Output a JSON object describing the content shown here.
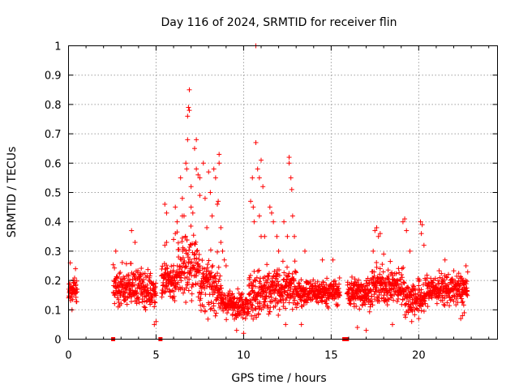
{
  "chart_data": {
    "type": "scatter",
    "title": "Day 116 of 2024, SRMTID for receiver flin",
    "xlabel": "GPS time / hours",
    "ylabel": "SRMTID / TECUs",
    "xlim": [
      0,
      24.5
    ],
    "ylim": [
      0,
      1
    ],
    "grid": true,
    "marker": "+",
    "marker_color": "#ff0000",
    "x_ticks": [
      {
        "value": 0,
        "label": "0"
      },
      {
        "value": 5,
        "label": "5"
      },
      {
        "value": 10,
        "label": "10"
      },
      {
        "value": 15,
        "label": "15"
      },
      {
        "value": 20,
        "label": "20"
      }
    ],
    "y_ticks": [
      {
        "value": 0,
        "label": "0"
      },
      {
        "value": 0.1,
        "label": "0.1"
      },
      {
        "value": 0.2,
        "label": "0.2"
      },
      {
        "value": 0.3,
        "label": "0.3"
      },
      {
        "value": 0.4,
        "label": "0.4"
      },
      {
        "value": 0.5,
        "label": "0.5"
      },
      {
        "value": 0.6,
        "label": "0.6"
      },
      {
        "value": 0.7,
        "label": "0.7"
      },
      {
        "value": 0.8,
        "label": "0.8"
      },
      {
        "value": 0.9,
        "label": "0.9"
      },
      {
        "value": 1,
        "label": "1"
      }
    ],
    "gap_markers_x": [
      2.55,
      5.25,
      15.75,
      15.9
    ],
    "segments": [
      {
        "start": 0.0,
        "end": 0.5,
        "base": 0.17,
        "spread": 0.05
      },
      {
        "start": 2.55,
        "end": 3.3,
        "base": 0.17,
        "spread": 0.08
      },
      {
        "start": 3.3,
        "end": 4.2,
        "base": 0.18,
        "spread": 0.07
      },
      {
        "start": 4.2,
        "end": 5.0,
        "base": 0.17,
        "spread": 0.07
      },
      {
        "start": 5.3,
        "end": 6.2,
        "base": 0.2,
        "spread": 0.08
      },
      {
        "start": 6.2,
        "end": 7.5,
        "base": 0.25,
        "spread": 0.14
      },
      {
        "start": 7.5,
        "end": 8.7,
        "base": 0.18,
        "spread": 0.1
      },
      {
        "start": 8.7,
        "end": 10.3,
        "base": 0.12,
        "spread": 0.05
      },
      {
        "start": 10.3,
        "end": 11.6,
        "base": 0.15,
        "spread": 0.1
      },
      {
        "start": 11.6,
        "end": 13.0,
        "base": 0.17,
        "spread": 0.08
      },
      {
        "start": 13.0,
        "end": 15.5,
        "base": 0.16,
        "spread": 0.05
      },
      {
        "start": 15.9,
        "end": 17.3,
        "base": 0.16,
        "spread": 0.06
      },
      {
        "start": 17.3,
        "end": 19.2,
        "base": 0.18,
        "spread": 0.07
      },
      {
        "start": 19.2,
        "end": 20.4,
        "base": 0.14,
        "spread": 0.07
      },
      {
        "start": 20.4,
        "end": 22.8,
        "base": 0.17,
        "spread": 0.06
      }
    ],
    "notable_points": [
      {
        "x": 0.1,
        "y": 0.26
      },
      {
        "x": 0.4,
        "y": 0.24
      },
      {
        "x": 0.2,
        "y": 0.1
      },
      {
        "x": 2.7,
        "y": 0.3
      },
      {
        "x": 3.6,
        "y": 0.37
      },
      {
        "x": 3.8,
        "y": 0.33
      },
      {
        "x": 4.9,
        "y": 0.05
      },
      {
        "x": 5.0,
        "y": 0.06
      },
      {
        "x": 5.5,
        "y": 0.32
      },
      {
        "x": 5.6,
        "y": 0.33
      },
      {
        "x": 6.0,
        "y": 0.34
      },
      {
        "x": 6.1,
        "y": 0.36
      },
      {
        "x": 5.5,
        "y": 0.46
      },
      {
        "x": 5.6,
        "y": 0.43
      },
      {
        "x": 6.1,
        "y": 0.45
      },
      {
        "x": 6.2,
        "y": 0.4
      },
      {
        "x": 6.4,
        "y": 0.55
      },
      {
        "x": 6.5,
        "y": 0.48
      },
      {
        "x": 6.5,
        "y": 0.42
      },
      {
        "x": 6.6,
        "y": 0.42
      },
      {
        "x": 6.7,
        "y": 0.6
      },
      {
        "x": 6.75,
        "y": 0.58
      },
      {
        "x": 6.8,
        "y": 0.68
      },
      {
        "x": 6.8,
        "y": 0.76
      },
      {
        "x": 6.85,
        "y": 0.79
      },
      {
        "x": 6.9,
        "y": 0.78
      },
      {
        "x": 6.9,
        "y": 0.85
      },
      {
        "x": 7.0,
        "y": 0.52
      },
      {
        "x": 7.0,
        "y": 0.45
      },
      {
        "x": 7.1,
        "y": 0.43
      },
      {
        "x": 7.2,
        "y": 0.65
      },
      {
        "x": 7.3,
        "y": 0.58
      },
      {
        "x": 7.4,
        "y": 0.56
      },
      {
        "x": 7.3,
        "y": 0.68
      },
      {
        "x": 7.5,
        "y": 0.55
      },
      {
        "x": 7.5,
        "y": 0.49
      },
      {
        "x": 7.7,
        "y": 0.6
      },
      {
        "x": 7.8,
        "y": 0.48
      },
      {
        "x": 7.9,
        "y": 0.38
      },
      {
        "x": 8.0,
        "y": 0.57
      },
      {
        "x": 8.1,
        "y": 0.5
      },
      {
        "x": 8.2,
        "y": 0.42
      },
      {
        "x": 8.3,
        "y": 0.58
      },
      {
        "x": 8.4,
        "y": 0.55
      },
      {
        "x": 8.5,
        "y": 0.46
      },
      {
        "x": 8.55,
        "y": 0.47
      },
      {
        "x": 8.6,
        "y": 0.63
      },
      {
        "x": 8.6,
        "y": 0.6
      },
      {
        "x": 8.7,
        "y": 0.38
      },
      {
        "x": 8.7,
        "y": 0.33
      },
      {
        "x": 8.8,
        "y": 0.3
      },
      {
        "x": 8.9,
        "y": 0.27
      },
      {
        "x": 9.0,
        "y": 0.25
      },
      {
        "x": 10.0,
        "y": 0.02
      },
      {
        "x": 9.6,
        "y": 0.03
      },
      {
        "x": 10.4,
        "y": 0.47
      },
      {
        "x": 10.5,
        "y": 0.55
      },
      {
        "x": 10.55,
        "y": 0.45
      },
      {
        "x": 10.6,
        "y": 0.4
      },
      {
        "x": 10.7,
        "y": 0.67
      },
      {
        "x": 10.7,
        "y": 1.0
      },
      {
        "x": 10.8,
        "y": 0.58
      },
      {
        "x": 10.9,
        "y": 0.55
      },
      {
        "x": 10.9,
        "y": 0.42
      },
      {
        "x": 11.0,
        "y": 0.61
      },
      {
        "x": 11.1,
        "y": 0.52
      },
      {
        "x": 11.0,
        "y": 0.35
      },
      {
        "x": 11.2,
        "y": 0.35
      },
      {
        "x": 11.5,
        "y": 0.45
      },
      {
        "x": 11.6,
        "y": 0.43
      },
      {
        "x": 11.7,
        "y": 0.4
      },
      {
        "x": 11.9,
        "y": 0.35
      },
      {
        "x": 12.0,
        "y": 0.3
      },
      {
        "x": 12.3,
        "y": 0.4
      },
      {
        "x": 12.5,
        "y": 0.35
      },
      {
        "x": 12.6,
        "y": 0.62
      },
      {
        "x": 12.6,
        "y": 0.6
      },
      {
        "x": 12.7,
        "y": 0.55
      },
      {
        "x": 12.75,
        "y": 0.51
      },
      {
        "x": 12.8,
        "y": 0.42
      },
      {
        "x": 12.9,
        "y": 0.35
      },
      {
        "x": 12.4,
        "y": 0.05
      },
      {
        "x": 13.3,
        "y": 0.05
      },
      {
        "x": 13.5,
        "y": 0.3
      },
      {
        "x": 14.5,
        "y": 0.27
      },
      {
        "x": 15.1,
        "y": 0.27
      },
      {
        "x": 17.5,
        "y": 0.37
      },
      {
        "x": 17.6,
        "y": 0.38
      },
      {
        "x": 17.7,
        "y": 0.35
      },
      {
        "x": 17.8,
        "y": 0.36
      },
      {
        "x": 17.4,
        "y": 0.3
      },
      {
        "x": 18.0,
        "y": 0.29
      },
      {
        "x": 16.5,
        "y": 0.04
      },
      {
        "x": 17.0,
        "y": 0.03
      },
      {
        "x": 18.5,
        "y": 0.05
      },
      {
        "x": 19.1,
        "y": 0.4
      },
      {
        "x": 19.2,
        "y": 0.41
      },
      {
        "x": 19.3,
        "y": 0.37
      },
      {
        "x": 19.5,
        "y": 0.3
      },
      {
        "x": 20.1,
        "y": 0.4
      },
      {
        "x": 20.2,
        "y": 0.39
      },
      {
        "x": 20.15,
        "y": 0.36
      },
      {
        "x": 20.3,
        "y": 0.32
      },
      {
        "x": 20.0,
        "y": 0.07
      },
      {
        "x": 19.6,
        "y": 0.06
      },
      {
        "x": 21.5,
        "y": 0.27
      },
      {
        "x": 22.4,
        "y": 0.07
      },
      {
        "x": 22.5,
        "y": 0.08
      },
      {
        "x": 22.6,
        "y": 0.09
      },
      {
        "x": 22.7,
        "y": 0.25
      }
    ]
  }
}
